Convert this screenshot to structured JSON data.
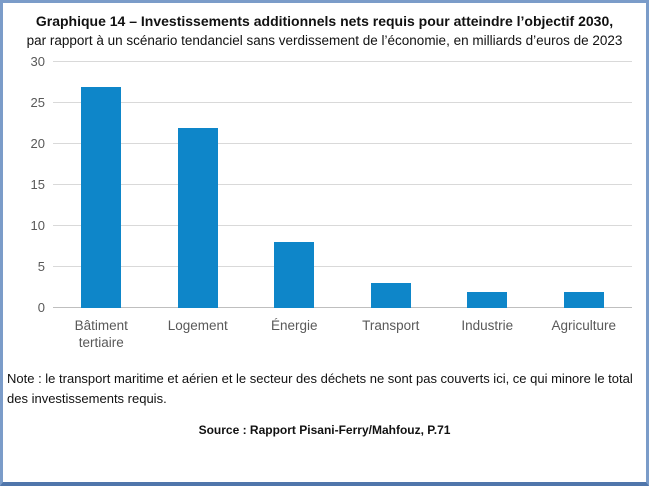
{
  "header": {
    "title": "Graphique 14 – Investissements additionnels nets requis pour atteindre l’objectif 2030,",
    "subtitle": "par rapport à un scénario tendanciel sans verdissement de l’économie, en milliards d’euros de 2023"
  },
  "chart_data": {
    "type": "bar",
    "categories": [
      "Bâtiment tertiaire",
      "Logement",
      "Énergie",
      "Transport",
      "Industrie",
      "Agriculture"
    ],
    "values": [
      27,
      22,
      8,
      3,
      2,
      2
    ],
    "title": "Investissements additionnels nets requis pour atteindre l’objectif 2030",
    "xlabel": "",
    "ylabel": "",
    "ylim": [
      0,
      30
    ],
    "yticks": [
      0,
      5,
      10,
      15,
      20,
      25,
      30
    ],
    "grid": true,
    "legend": "none",
    "bar_color": "#0e86c9",
    "grid_color": "#d9d9d9",
    "axis_label_color": "#595959"
  },
  "note": "Note : le transport maritime et aérien et le secteur des déchets ne sont pas couverts ici, ce qui minore le total des investissements requis.",
  "source": "Source : Rapport Pisani-Ferry/Mahfouz, P.71",
  "frame": {
    "border_color": "#7b9cc9"
  }
}
